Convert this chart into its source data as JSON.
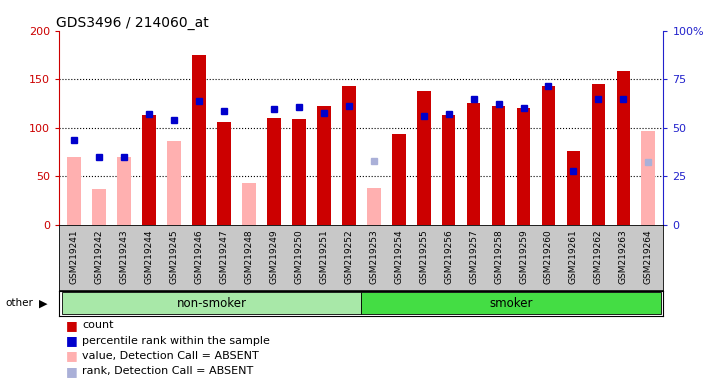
{
  "title": "GDS3496 / 214060_at",
  "samples": [
    "GSM219241",
    "GSM219242",
    "GSM219243",
    "GSM219244",
    "GSM219245",
    "GSM219246",
    "GSM219247",
    "GSM219248",
    "GSM219249",
    "GSM219250",
    "GSM219251",
    "GSM219252",
    "GSM219253",
    "GSM219254",
    "GSM219255",
    "GSM219256",
    "GSM219257",
    "GSM219258",
    "GSM219259",
    "GSM219260",
    "GSM219261",
    "GSM219262",
    "GSM219263",
    "GSM219264"
  ],
  "count": [
    0,
    0,
    0,
    113,
    0,
    175,
    106,
    0,
    110,
    109,
    122,
    143,
    0,
    93,
    138,
    113,
    125,
    122,
    120,
    143,
    76,
    145,
    158,
    0
  ],
  "percentile_rank": [
    87,
    70,
    70,
    114,
    108,
    128,
    117,
    0,
    119,
    121,
    115,
    122,
    0,
    0,
    112,
    114,
    130,
    124,
    120,
    143,
    55,
    130,
    130,
    0
  ],
  "absent_value": [
    70,
    37,
    70,
    0,
    86,
    0,
    0,
    43,
    0,
    0,
    0,
    0,
    38,
    0,
    0,
    0,
    0,
    0,
    0,
    0,
    0,
    0,
    0,
    97
  ],
  "absent_rank": [
    0,
    0,
    0,
    0,
    0,
    0,
    0,
    0,
    0,
    0,
    0,
    0,
    66,
    0,
    0,
    0,
    0,
    0,
    0,
    0,
    0,
    0,
    0,
    65
  ],
  "group": [
    "non-smoker",
    "non-smoker",
    "non-smoker",
    "non-smoker",
    "non-smoker",
    "non-smoker",
    "non-smoker",
    "non-smoker",
    "non-smoker",
    "non-smoker",
    "non-smoker",
    "non-smoker",
    "smoker",
    "smoker",
    "smoker",
    "smoker",
    "smoker",
    "smoker",
    "smoker",
    "smoker",
    "smoker",
    "smoker",
    "smoker",
    "smoker"
  ],
  "ylim_left": [
    0,
    200
  ],
  "ylim_right": [
    0,
    100
  ],
  "yticks_left": [
    0,
    50,
    100,
    150,
    200
  ],
  "yticks_right": [
    0,
    25,
    50,
    75,
    100
  ],
  "count_color": "#cc0000",
  "rank_color": "#0000cc",
  "absent_value_color": "#ffb0b0",
  "absent_rank_color": "#aab0d8",
  "group_colors": {
    "non-smoker": "#a8e8a8",
    "smoker": "#44dd44"
  },
  "xtick_bg": "#c8c8c8",
  "title_fontsize": 10,
  "tick_fontsize": 6.5,
  "right_axis_color": "#2222cc",
  "left_axis_color": "#cc0000",
  "ytick_right_labels": [
    "0",
    "25",
    "50",
    "75",
    "100%"
  ]
}
